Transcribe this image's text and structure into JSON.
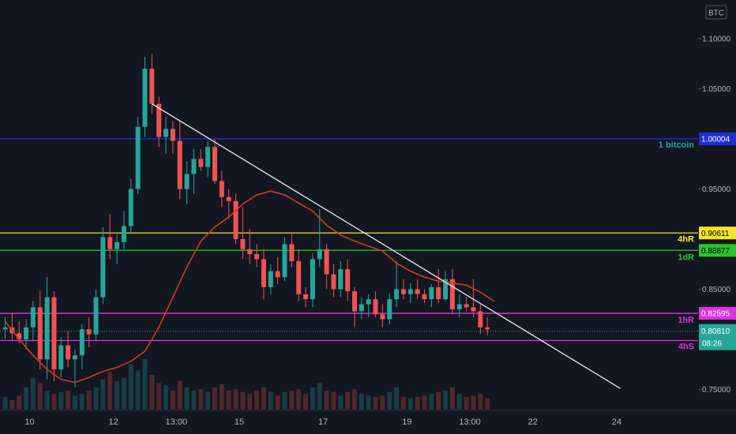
{
  "chart_data": {
    "type": "candlestick",
    "currency_badge": "BTC",
    "y_ticks": [
      "1.10000",
      "1.05000",
      "0.95000",
      "0.85000",
      "0.75000"
    ],
    "ylim": [
      0.737,
      1.115
    ],
    "x_ticks": [
      {
        "label": "10",
        "bar": 3.5
      },
      {
        "label": "12",
        "bar": 15.5
      },
      {
        "label": "13:00",
        "bar": 24.5
      },
      {
        "label": "15",
        "bar": 33.5
      },
      {
        "label": "17",
        "bar": 45.5
      },
      {
        "label": "19",
        "bar": 57.5
      },
      {
        "label": "13:00",
        "bar": 66.5
      },
      {
        "label": "22",
        "bar": 75.5
      },
      {
        "label": "24",
        "bar": 87.5
      }
    ],
    "colors": {
      "up": "#26a69a",
      "down": "#ef5350",
      "ma": "#d13a1f",
      "trendline": "#e8e8e8",
      "blue": "#1f2fd6",
      "yellow": "#f5e52a",
      "green": "#2cc42c",
      "magenta": "#e030e0"
    },
    "candles": [
      [
        0.81,
        0.822,
        0.8,
        0.812
      ],
      [
        0.812,
        0.826,
        0.798,
        0.806
      ],
      [
        0.806,
        0.818,
        0.796,
        0.8
      ],
      [
        0.8,
        0.82,
        0.79,
        0.812
      ],
      [
        0.812,
        0.838,
        0.798,
        0.832
      ],
      [
        0.832,
        0.848,
        0.77,
        0.78
      ],
      [
        0.78,
        0.862,
        0.76,
        0.842
      ],
      [
        0.842,
        0.848,
        0.758,
        0.77
      ],
      [
        0.77,
        0.802,
        0.762,
        0.794
      ],
      [
        0.794,
        0.808,
        0.772,
        0.78
      ],
      [
        0.78,
        0.79,
        0.752,
        0.784
      ],
      [
        0.784,
        0.815,
        0.77,
        0.81
      ],
      [
        0.81,
        0.822,
        0.792,
        0.805
      ],
      [
        0.805,
        0.85,
        0.798,
        0.842
      ],
      [
        0.842,
        0.912,
        0.835,
        0.902
      ],
      [
        0.902,
        0.925,
        0.88,
        0.89
      ],
      [
        0.89,
        0.905,
        0.875,
        0.897
      ],
      [
        0.897,
        0.928,
        0.89,
        0.913
      ],
      [
        0.913,
        0.96,
        0.905,
        0.95
      ],
      [
        0.95,
        1.022,
        0.945,
        1.012
      ],
      [
        1.012,
        1.082,
        1.002,
        1.07
      ],
      [
        1.07,
        1.085,
        1.025,
        1.035
      ],
      [
        1.035,
        1.042,
        0.992,
        1.002
      ],
      [
        1.002,
        1.022,
        0.985,
        1.01
      ],
      [
        1.01,
        1.018,
        0.985,
        0.998
      ],
      [
        0.998,
        1.018,
        0.94,
        0.95
      ],
      [
        0.95,
        0.978,
        0.935,
        0.965
      ],
      [
        0.965,
        0.99,
        0.945,
        0.98
      ],
      [
        0.98,
        0.99,
        0.968,
        0.972
      ],
      [
        0.972,
        0.998,
        0.962,
        0.992
      ],
      [
        0.992,
        1.0,
        0.955,
        0.958
      ],
      [
        0.958,
        0.968,
        0.932,
        0.942
      ],
      [
        0.942,
        0.95,
        0.92,
        0.938
      ],
      [
        0.938,
        0.945,
        0.895,
        0.9
      ],
      [
        0.9,
        0.932,
        0.88,
        0.89
      ],
      [
        0.89,
        0.91,
        0.875,
        0.885
      ],
      [
        0.885,
        0.895,
        0.872,
        0.88
      ],
      [
        0.88,
        0.89,
        0.84,
        0.852
      ],
      [
        0.852,
        0.875,
        0.845,
        0.868
      ],
      [
        0.868,
        0.882,
        0.855,
        0.862
      ],
      [
        0.862,
        0.902,
        0.858,
        0.895
      ],
      [
        0.895,
        0.905,
        0.872,
        0.878
      ],
      [
        0.878,
        0.89,
        0.838,
        0.845
      ],
      [
        0.845,
        0.852,
        0.832,
        0.84
      ],
      [
        0.84,
        0.886,
        0.832,
        0.88
      ],
      [
        0.88,
        0.93,
        0.872,
        0.89
      ],
      [
        0.89,
        0.895,
        0.85,
        0.865
      ],
      [
        0.865,
        0.875,
        0.842,
        0.85
      ],
      [
        0.85,
        0.878,
        0.842,
        0.87
      ],
      [
        0.87,
        0.88,
        0.838,
        0.848
      ],
      [
        0.848,
        0.852,
        0.812,
        0.828
      ],
      [
        0.828,
        0.842,
        0.82,
        0.835
      ],
      [
        0.835,
        0.845,
        0.822,
        0.84
      ],
      [
        0.84,
        0.848,
        0.822,
        0.825
      ],
      [
        0.825,
        0.835,
        0.812,
        0.82
      ],
      [
        0.82,
        0.846,
        0.815,
        0.84
      ],
      [
        0.84,
        0.878,
        0.832,
        0.85
      ],
      [
        0.85,
        0.86,
        0.84,
        0.845
      ],
      [
        0.845,
        0.856,
        0.836,
        0.85
      ],
      [
        0.85,
        0.86,
        0.84,
        0.845
      ],
      [
        0.845,
        0.85,
        0.836,
        0.84
      ],
      [
        0.84,
        0.855,
        0.832,
        0.852
      ],
      [
        0.852,
        0.87,
        0.836,
        0.84
      ],
      [
        0.84,
        0.868,
        0.838,
        0.86
      ],
      [
        0.86,
        0.87,
        0.825,
        0.83
      ],
      [
        0.83,
        0.845,
        0.822,
        0.835
      ],
      [
        0.835,
        0.842,
        0.828,
        0.832
      ],
      [
        0.832,
        0.86,
        0.822,
        0.828
      ],
      [
        0.828,
        0.835,
        0.805,
        0.812
      ],
      [
        0.812,
        0.822,
        0.804,
        0.81
      ]
    ],
    "volume": [
      0.2,
      0.15,
      0.22,
      0.35,
      0.5,
      0.42,
      0.3,
      0.25,
      0.28,
      0.3,
      0.22,
      0.25,
      0.3,
      0.35,
      0.48,
      0.6,
      0.45,
      0.5,
      0.72,
      0.62,
      0.8,
      0.55,
      0.42,
      0.38,
      0.3,
      0.45,
      0.35,
      0.3,
      0.32,
      0.28,
      0.35,
      0.4,
      0.3,
      0.32,
      0.28,
      0.25,
      0.3,
      0.35,
      0.28,
      0.22,
      0.28,
      0.3,
      0.32,
      0.25,
      0.35,
      0.42,
      0.3,
      0.28,
      0.22,
      0.28,
      0.32,
      0.25,
      0.22,
      0.2,
      0.22,
      0.28,
      0.35,
      0.2,
      0.18,
      0.2,
      0.22,
      0.25,
      0.28,
      0.3,
      0.35,
      0.25,
      0.2,
      0.22,
      0.25,
      0.18
    ],
    "moving_average": [
      [
        0,
        0.818
      ],
      [
        2,
        0.8
      ],
      [
        4,
        0.784
      ],
      [
        6,
        0.77
      ],
      [
        8,
        0.76
      ],
      [
        10,
        0.757
      ],
      [
        12,
        0.762
      ],
      [
        14,
        0.768
      ],
      [
        16,
        0.772
      ],
      [
        18,
        0.778
      ],
      [
        20,
        0.788
      ],
      [
        22,
        0.812
      ],
      [
        24,
        0.842
      ],
      [
        26,
        0.872
      ],
      [
        28,
        0.898
      ],
      [
        30,
        0.912
      ],
      [
        32,
        0.922
      ],
      [
        34,
        0.935
      ],
      [
        36,
        0.944
      ],
      [
        38,
        0.948
      ],
      [
        40,
        0.944
      ],
      [
        42,
        0.936
      ],
      [
        44,
        0.928
      ],
      [
        46,
        0.914
      ],
      [
        48,
        0.904
      ],
      [
        50,
        0.898
      ],
      [
        52,
        0.893
      ],
      [
        54,
        0.888
      ],
      [
        56,
        0.876
      ],
      [
        58,
        0.868
      ],
      [
        60,
        0.862
      ],
      [
        62,
        0.858
      ],
      [
        64,
        0.856
      ],
      [
        66,
        0.854
      ],
      [
        68,
        0.847
      ],
      [
        70,
        0.838
      ]
    ],
    "trendline": {
      "from": [
        21,
        1.035
      ],
      "to": [
        88,
        0.751
      ]
    },
    "levels": [
      {
        "name": "blue",
        "value": 1.00004,
        "badge": "1.00004",
        "label": "1 bitcoin",
        "color": "blue",
        "label_color": "#26a69a",
        "badge_text_color": "#ffffff"
      },
      {
        "name": "yellow",
        "value": 0.90611,
        "badge": "0.90611",
        "label": "4hR",
        "color": "yellow",
        "label_color": "#f5e52a",
        "badge_text_color": "#000000"
      },
      {
        "name": "green",
        "value": 0.88877,
        "badge": "0.88877",
        "label": "1dR",
        "color": "green",
        "label_color": "#2cc42c",
        "badge_text_color": "#000000"
      },
      {
        "name": "magenta-upper",
        "value": 0.82595,
        "badge": "0.82595",
        "label": "1hR",
        "color": "magenta",
        "label_color": "#e030e0",
        "badge_text_color": "#ffffff"
      },
      {
        "name": "magenta-lower",
        "value": 0.7988,
        "badge": "",
        "label": "4hS",
        "color": "magenta",
        "label_color": "#e030e0",
        "badge_text_color": "#ffffff"
      }
    ],
    "current_price": {
      "value": 0.8081,
      "badge": "0.80810",
      "countdown": "08:26"
    }
  }
}
